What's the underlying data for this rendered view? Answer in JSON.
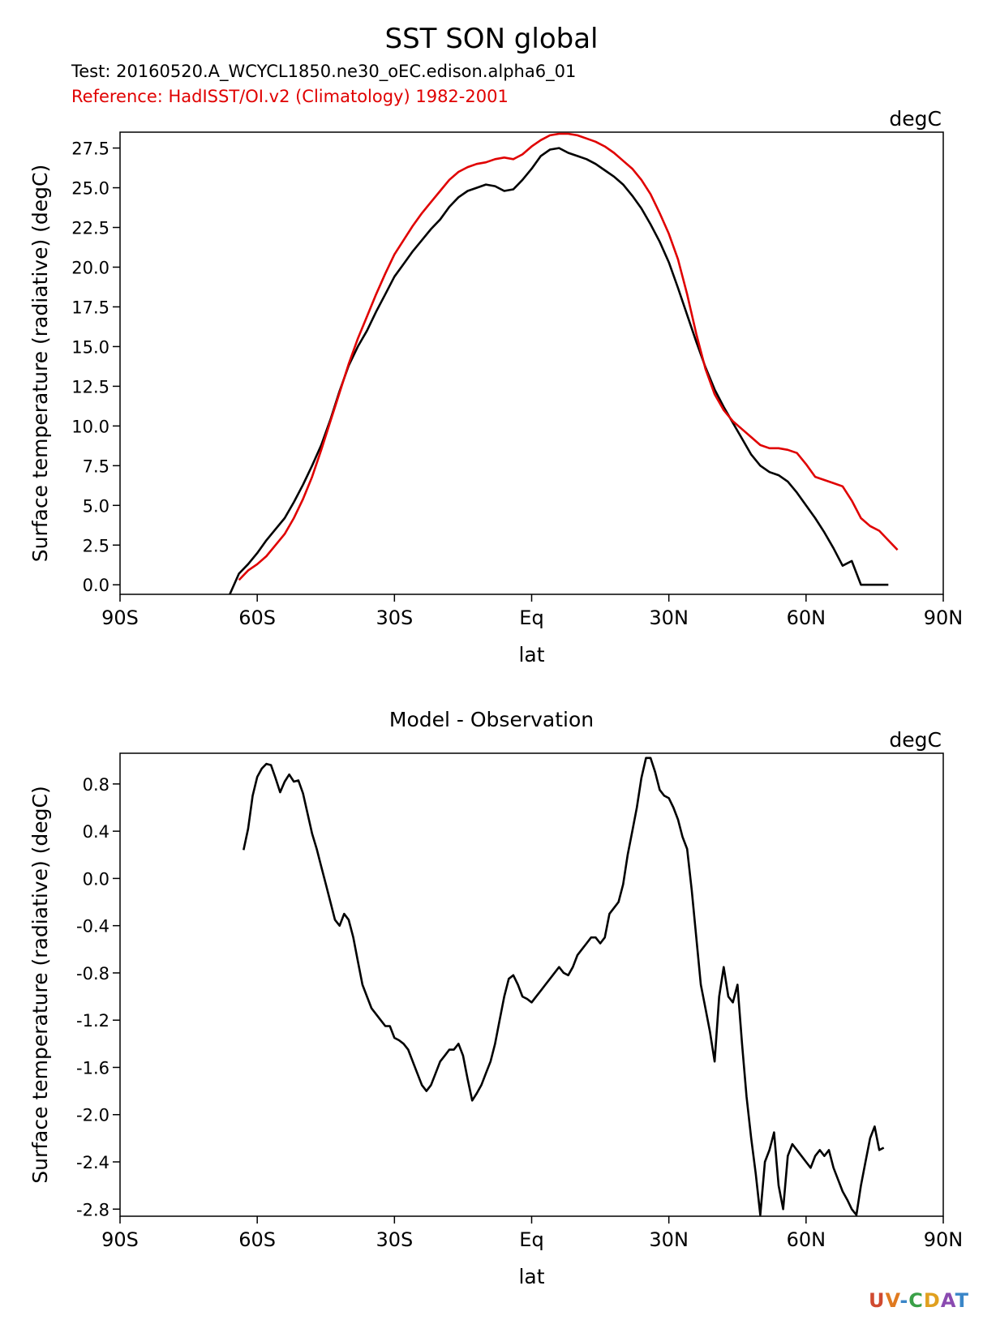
{
  "figure": {
    "title": "SST SON global",
    "test_label": "Test: 20160520.A_WCYCL1850.ne30_oEC.edison.alpha6_01",
    "reference_label": "Reference: HadISST/OI.v2 (Climatology) 1982-2001",
    "logo_text": "UV-CDAT",
    "colors": {
      "test": "#000000",
      "reference": "#e00000",
      "frame": "#000000"
    }
  },
  "chart_data": [
    {
      "type": "line",
      "panel_title": "",
      "units": "degC",
      "xlabel": "lat",
      "ylabel": "Surface temperature (radiative) (degC)",
      "xlim": [
        -90,
        90
      ],
      "ylim": [
        -0.6,
        28.5
      ],
      "xticks": [
        -90,
        -60,
        -30,
        0,
        30,
        60,
        90
      ],
      "xtick_labels": [
        "90S",
        "60S",
        "30S",
        "Eq",
        "30N",
        "60N",
        "90N"
      ],
      "yticks": [
        0,
        2.5,
        5,
        7.5,
        10,
        12.5,
        15,
        17.5,
        20,
        22.5,
        25,
        27.5
      ],
      "ytick_labels": [
        "0.0",
        "2.5",
        "5.0",
        "7.5",
        "10.0",
        "12.5",
        "15.0",
        "17.5",
        "20.0",
        "22.5",
        "25.0",
        "27.5"
      ],
      "series": [
        {
          "name": "Test",
          "color": "#000000",
          "x": [
            -66,
            -64,
            -62,
            -60,
            -58,
            -56,
            -54,
            -52,
            -50,
            -48,
            -46,
            -44,
            -42,
            -40,
            -38,
            -36,
            -34,
            -32,
            -30,
            -28,
            -26,
            -24,
            -22,
            -20,
            -18,
            -16,
            -14,
            -12,
            -10,
            -8,
            -6,
            -4,
            -2,
            0,
            2,
            4,
            6,
            8,
            10,
            12,
            14,
            16,
            18,
            20,
            22,
            24,
            26,
            28,
            30,
            32,
            34,
            36,
            38,
            40,
            42,
            44,
            46,
            48,
            50,
            52,
            54,
            56,
            58,
            60,
            62,
            64,
            66,
            68,
            70,
            72,
            74,
            76,
            78
          ],
          "y": [
            -0.6,
            0.7,
            1.3,
            2.0,
            2.8,
            3.5,
            4.2,
            5.2,
            6.3,
            7.5,
            8.8,
            10.4,
            12.2,
            13.8,
            15.0,
            16.0,
            17.2,
            18.3,
            19.4,
            20.2,
            21.0,
            21.7,
            22.4,
            23.0,
            23.8,
            24.4,
            24.8,
            25.0,
            25.2,
            25.1,
            24.8,
            24.9,
            25.5,
            26.2,
            27.0,
            27.4,
            27.5,
            27.2,
            27.0,
            26.8,
            26.5,
            26.1,
            25.7,
            25.2,
            24.5,
            23.7,
            22.7,
            21.6,
            20.3,
            18.7,
            17.0,
            15.3,
            13.7,
            12.3,
            11.2,
            10.2,
            9.2,
            8.2,
            7.5,
            7.1,
            6.9,
            6.5,
            5.8,
            5.0,
            4.2,
            3.3,
            2.3,
            1.2,
            1.5,
            0.0,
            0.0,
            0.0,
            0.0
          ]
        },
        {
          "name": "Reference",
          "color": "#e00000",
          "x": [
            -64,
            -62,
            -60,
            -58,
            -56,
            -54,
            -52,
            -50,
            -48,
            -46,
            -44,
            -42,
            -40,
            -38,
            -36,
            -34,
            -32,
            -30,
            -28,
            -26,
            -24,
            -22,
            -20,
            -18,
            -16,
            -14,
            -12,
            -10,
            -8,
            -6,
            -4,
            -2,
            0,
            2,
            4,
            6,
            8,
            10,
            12,
            14,
            16,
            18,
            20,
            22,
            24,
            26,
            28,
            30,
            32,
            34,
            36,
            38,
            40,
            42,
            44,
            46,
            48,
            50,
            52,
            54,
            56,
            58,
            60,
            62,
            64,
            66,
            68,
            70,
            72,
            74,
            76,
            78,
            80
          ],
          "y": [
            0.3,
            0.9,
            1.3,
            1.8,
            2.5,
            3.2,
            4.2,
            5.4,
            6.8,
            8.5,
            10.3,
            12.1,
            13.9,
            15.5,
            16.9,
            18.3,
            19.6,
            20.8,
            21.7,
            22.6,
            23.4,
            24.1,
            24.8,
            25.5,
            26.0,
            26.3,
            26.5,
            26.6,
            26.8,
            26.9,
            26.8,
            27.1,
            27.6,
            28.0,
            28.3,
            28.4,
            28.4,
            28.3,
            28.1,
            27.9,
            27.6,
            27.2,
            26.7,
            26.2,
            25.5,
            24.6,
            23.4,
            22.1,
            20.5,
            18.3,
            15.8,
            13.6,
            12.0,
            11.0,
            10.3,
            9.8,
            9.3,
            8.8,
            8.6,
            8.6,
            8.5,
            8.3,
            7.6,
            6.8,
            6.6,
            6.4,
            6.2,
            5.3,
            4.2,
            3.7,
            3.4,
            2.8,
            2.2
          ]
        }
      ]
    },
    {
      "type": "line",
      "panel_title": "Model - Observation",
      "units": "degC",
      "xlabel": "lat",
      "ylabel": "Surface temperature (radiative) (degC)",
      "xlim": [
        -90,
        90
      ],
      "ylim": [
        -2.86,
        1.06
      ],
      "xticks": [
        -90,
        -60,
        -30,
        0,
        30,
        60,
        90
      ],
      "xtick_labels": [
        "90S",
        "60S",
        "30S",
        "Eq",
        "30N",
        "60N",
        "90N"
      ],
      "yticks": [
        0.8,
        0.4,
        0.0,
        -0.4,
        -0.8,
        -1.2,
        -1.6,
        -2.0,
        -2.4,
        -2.8
      ],
      "ytick_labels": [
        "0.8",
        "0.4",
        "0.0",
        "-0.4",
        "-0.8",
        "-1.2",
        "-1.6",
        "-2.0",
        "-2.4",
        "-2.8"
      ],
      "series": [
        {
          "name": "Model - Observation",
          "color": "#000000",
          "x": [
            -63,
            -62,
            -61,
            -60,
            -59,
            -58,
            -57,
            -56,
            -55,
            -54,
            -53,
            -52,
            -51,
            -50,
            -49,
            -48,
            -47,
            -46,
            -45,
            -44,
            -43,
            -42,
            -41,
            -40,
            -39,
            -38,
            -37,
            -36,
            -35,
            -34,
            -33,
            -32,
            -31,
            -30,
            -29,
            -28,
            -27,
            -26,
            -25,
            -24,
            -23,
            -22,
            -21,
            -20,
            -19,
            -18,
            -17,
            -16,
            -15,
            -14,
            -13,
            -12,
            -11,
            -10,
            -9,
            -8,
            -7,
            -6,
            -5,
            -4,
            -3,
            -2,
            -1,
            0,
            1,
            2,
            3,
            4,
            5,
            6,
            7,
            8,
            9,
            10,
            11,
            12,
            13,
            14,
            15,
            16,
            17,
            18,
            19,
            20,
            21,
            22,
            23,
            24,
            25,
            26,
            27,
            28,
            29,
            30,
            31,
            32,
            33,
            34,
            35,
            36,
            37,
            38,
            39,
            40,
            41,
            42,
            43,
            44,
            45,
            46,
            47,
            48,
            49,
            50,
            51,
            52,
            53,
            54,
            55,
            56,
            57,
            58,
            59,
            60,
            61,
            62,
            63,
            64,
            65,
            66,
            67,
            68,
            69,
            70,
            71,
            72,
            73,
            74,
            75,
            76,
            77
          ],
          "y": [
            0.24,
            0.42,
            0.7,
            0.86,
            0.93,
            0.97,
            0.96,
            0.85,
            0.73,
            0.82,
            0.88,
            0.82,
            0.83,
            0.72,
            0.55,
            0.38,
            0.25,
            0.1,
            -0.05,
            -0.2,
            -0.35,
            -0.4,
            -0.3,
            -0.35,
            -0.5,
            -0.7,
            -0.9,
            -1.0,
            -1.1,
            -1.15,
            -1.2,
            -1.25,
            -1.25,
            -1.35,
            -1.37,
            -1.4,
            -1.45,
            -1.55,
            -1.65,
            -1.75,
            -1.8,
            -1.75,
            -1.65,
            -1.55,
            -1.5,
            -1.45,
            -1.45,
            -1.4,
            -1.5,
            -1.7,
            -1.88,
            -1.82,
            -1.75,
            -1.65,
            -1.55,
            -1.4,
            -1.2,
            -1.0,
            -0.85,
            -0.82,
            -0.9,
            -1.0,
            -1.02,
            -1.05,
            -1.0,
            -0.95,
            -0.9,
            -0.85,
            -0.8,
            -0.75,
            -0.8,
            -0.82,
            -0.75,
            -0.65,
            -0.6,
            -0.55,
            -0.5,
            -0.5,
            -0.55,
            -0.5,
            -0.3,
            -0.25,
            -0.2,
            -0.05,
            0.2,
            0.4,
            0.6,
            0.85,
            1.02,
            1.02,
            0.9,
            0.75,
            0.7,
            0.68,
            0.6,
            0.5,
            0.35,
            0.25,
            -0.1,
            -0.5,
            -0.9,
            -1.1,
            -1.3,
            -1.55,
            -1.0,
            -0.75,
            -1.0,
            -1.05,
            -0.9,
            -1.4,
            -1.85,
            -2.2,
            -2.5,
            -2.85,
            -2.4,
            -2.3,
            -2.15,
            -2.6,
            -2.8,
            -2.35,
            -2.25,
            -2.3,
            -2.35,
            -2.4,
            -2.45,
            -2.35,
            -2.3,
            -2.35,
            -2.3,
            -2.45,
            -2.55,
            -2.65,
            -2.72,
            -2.8,
            -2.85,
            -2.6,
            -2.4,
            -2.2,
            -2.1,
            -2.3,
            -2.28
          ]
        }
      ]
    }
  ]
}
